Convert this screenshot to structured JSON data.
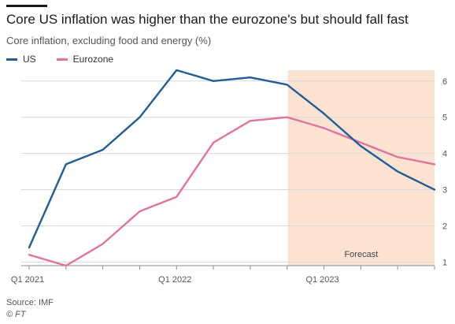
{
  "header": {
    "title": "Core US inflation was higher than the eurozone's but should fall fast",
    "subtitle": "Core inflation, excluding food and energy (%)"
  },
  "footer": {
    "source": "Source: IMF",
    "copyright": "© FT"
  },
  "chart_data": {
    "type": "line",
    "title": "Core US inflation was higher than the eurozone's but should fall fast",
    "subtitle": "Core inflation, excluding food and energy (%)",
    "xlabel": "",
    "ylabel": "",
    "x_tick_labels": [
      "Q1 2021",
      "Q1 2022",
      "Q1 2023"
    ],
    "x": [
      "2021 Q1",
      "2021 Q2",
      "2021 Q3",
      "2021 Q4",
      "2022 Q1",
      "2022 Q2",
      "2022 Q3",
      "2022 Q4",
      "2023 Q1",
      "2023 Q2",
      "2023 Q3",
      "2023 Q4"
    ],
    "ylim": [
      0.9,
      6.3
    ],
    "y_ticks": [
      1,
      2,
      3,
      4,
      5,
      6
    ],
    "y_axis_side": "right",
    "grid": true,
    "legend_position": "top-left",
    "series": [
      {
        "name": "US",
        "color": "#1f5c99",
        "values": [
          1.4,
          3.7,
          4.1,
          5.0,
          6.3,
          6.0,
          6.1,
          5.9,
          5.1,
          4.2,
          3.5,
          3.0
        ]
      },
      {
        "name": "Eurozone",
        "color": "#e3739e",
        "values": [
          1.2,
          0.9,
          1.5,
          2.4,
          2.8,
          4.3,
          4.9,
          5.0,
          4.7,
          4.3,
          3.9,
          3.7
        ]
      }
    ],
    "annotations": [
      {
        "text": "Forecast",
        "shaded_from": "2022 Q4",
        "shaded_to": "2023 Q4",
        "color": "#fce3d1"
      }
    ]
  }
}
